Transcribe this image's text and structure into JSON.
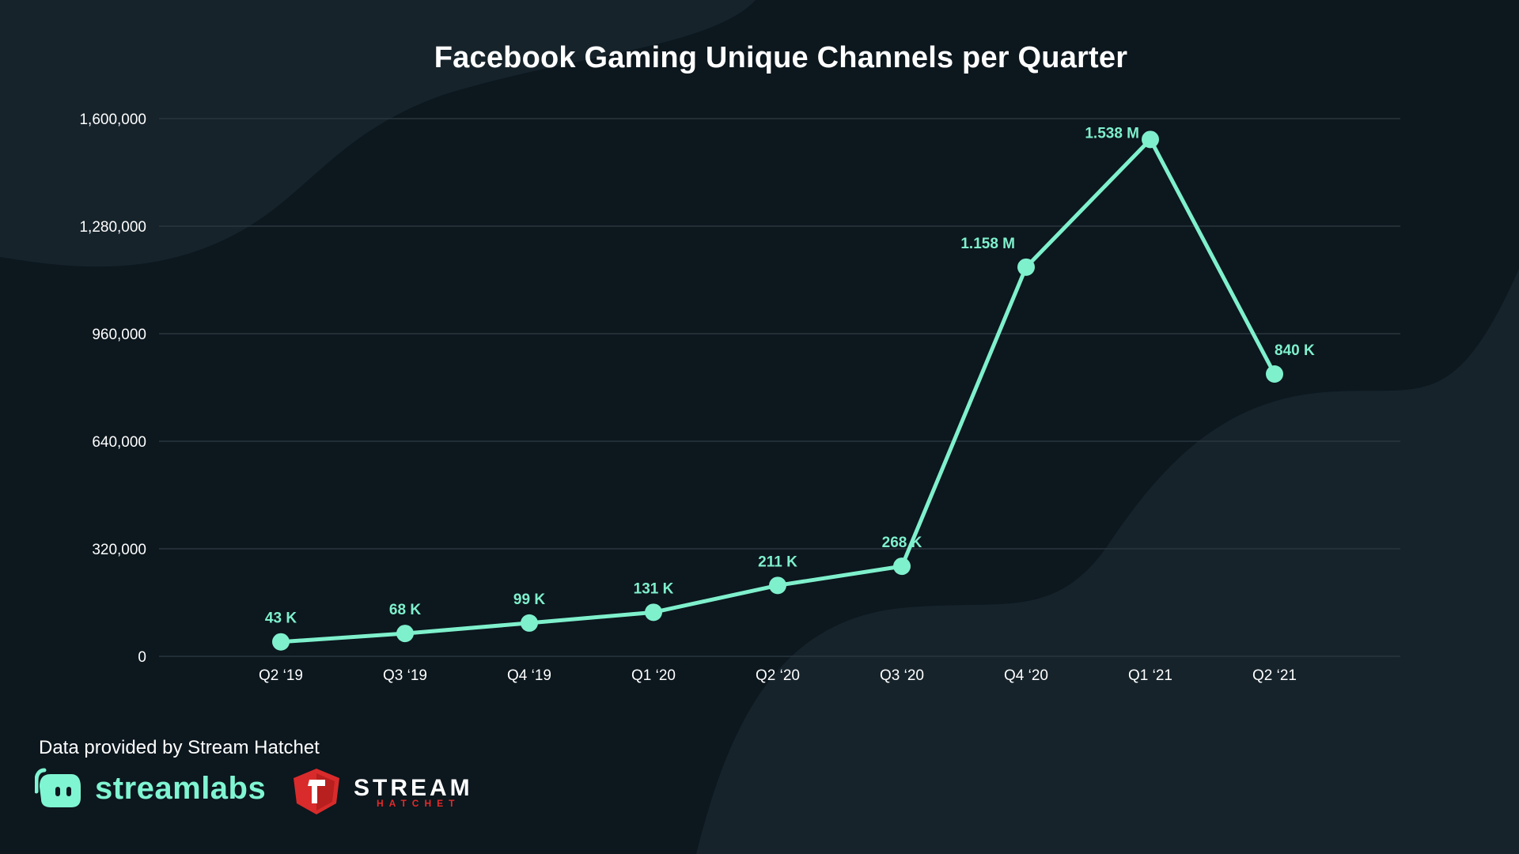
{
  "chart_data": {
    "type": "line",
    "title": "Facebook Gaming Unique Channels per Quarter",
    "xlabel": "",
    "ylabel": "",
    "categories": [
      "Q2 ‘19",
      "Q3 ‘19",
      "Q4 ‘19",
      "Q1 ‘20",
      "Q2 ‘20",
      "Q3 ‘20",
      "Q4 ‘20",
      "Q1 ‘21",
      "Q2 ‘21"
    ],
    "values": [
      43000,
      68000,
      99000,
      131000,
      211000,
      268000,
      1158000,
      1538000,
      840000
    ],
    "data_labels": [
      "43 K",
      "68 K",
      "99 K",
      "131 K",
      "211 K",
      "268 K",
      "1.158 M",
      "1.538 M",
      "840 K"
    ],
    "ylim": [
      0,
      1600000
    ],
    "y_ticks": [
      0,
      320000,
      640000,
      960000,
      1280000,
      1600000
    ],
    "y_tick_labels": [
      "0",
      "320,000",
      "640,000",
      "960,000",
      "1,280,000",
      "1,600,000"
    ],
    "grid": "horizontal",
    "legend": "none",
    "colors": {
      "line": "#7ff0cc",
      "background": "#0c171e",
      "grid": "#2a363e",
      "text": "#ffffff"
    }
  },
  "footer": {
    "credit": "Data provided by Stream Hatchet",
    "streamlabs_logo_text": "streamlabs",
    "stream_hatchet_logo_text": "STREAM",
    "stream_hatchet_logo_subtext": "HATCHET"
  }
}
